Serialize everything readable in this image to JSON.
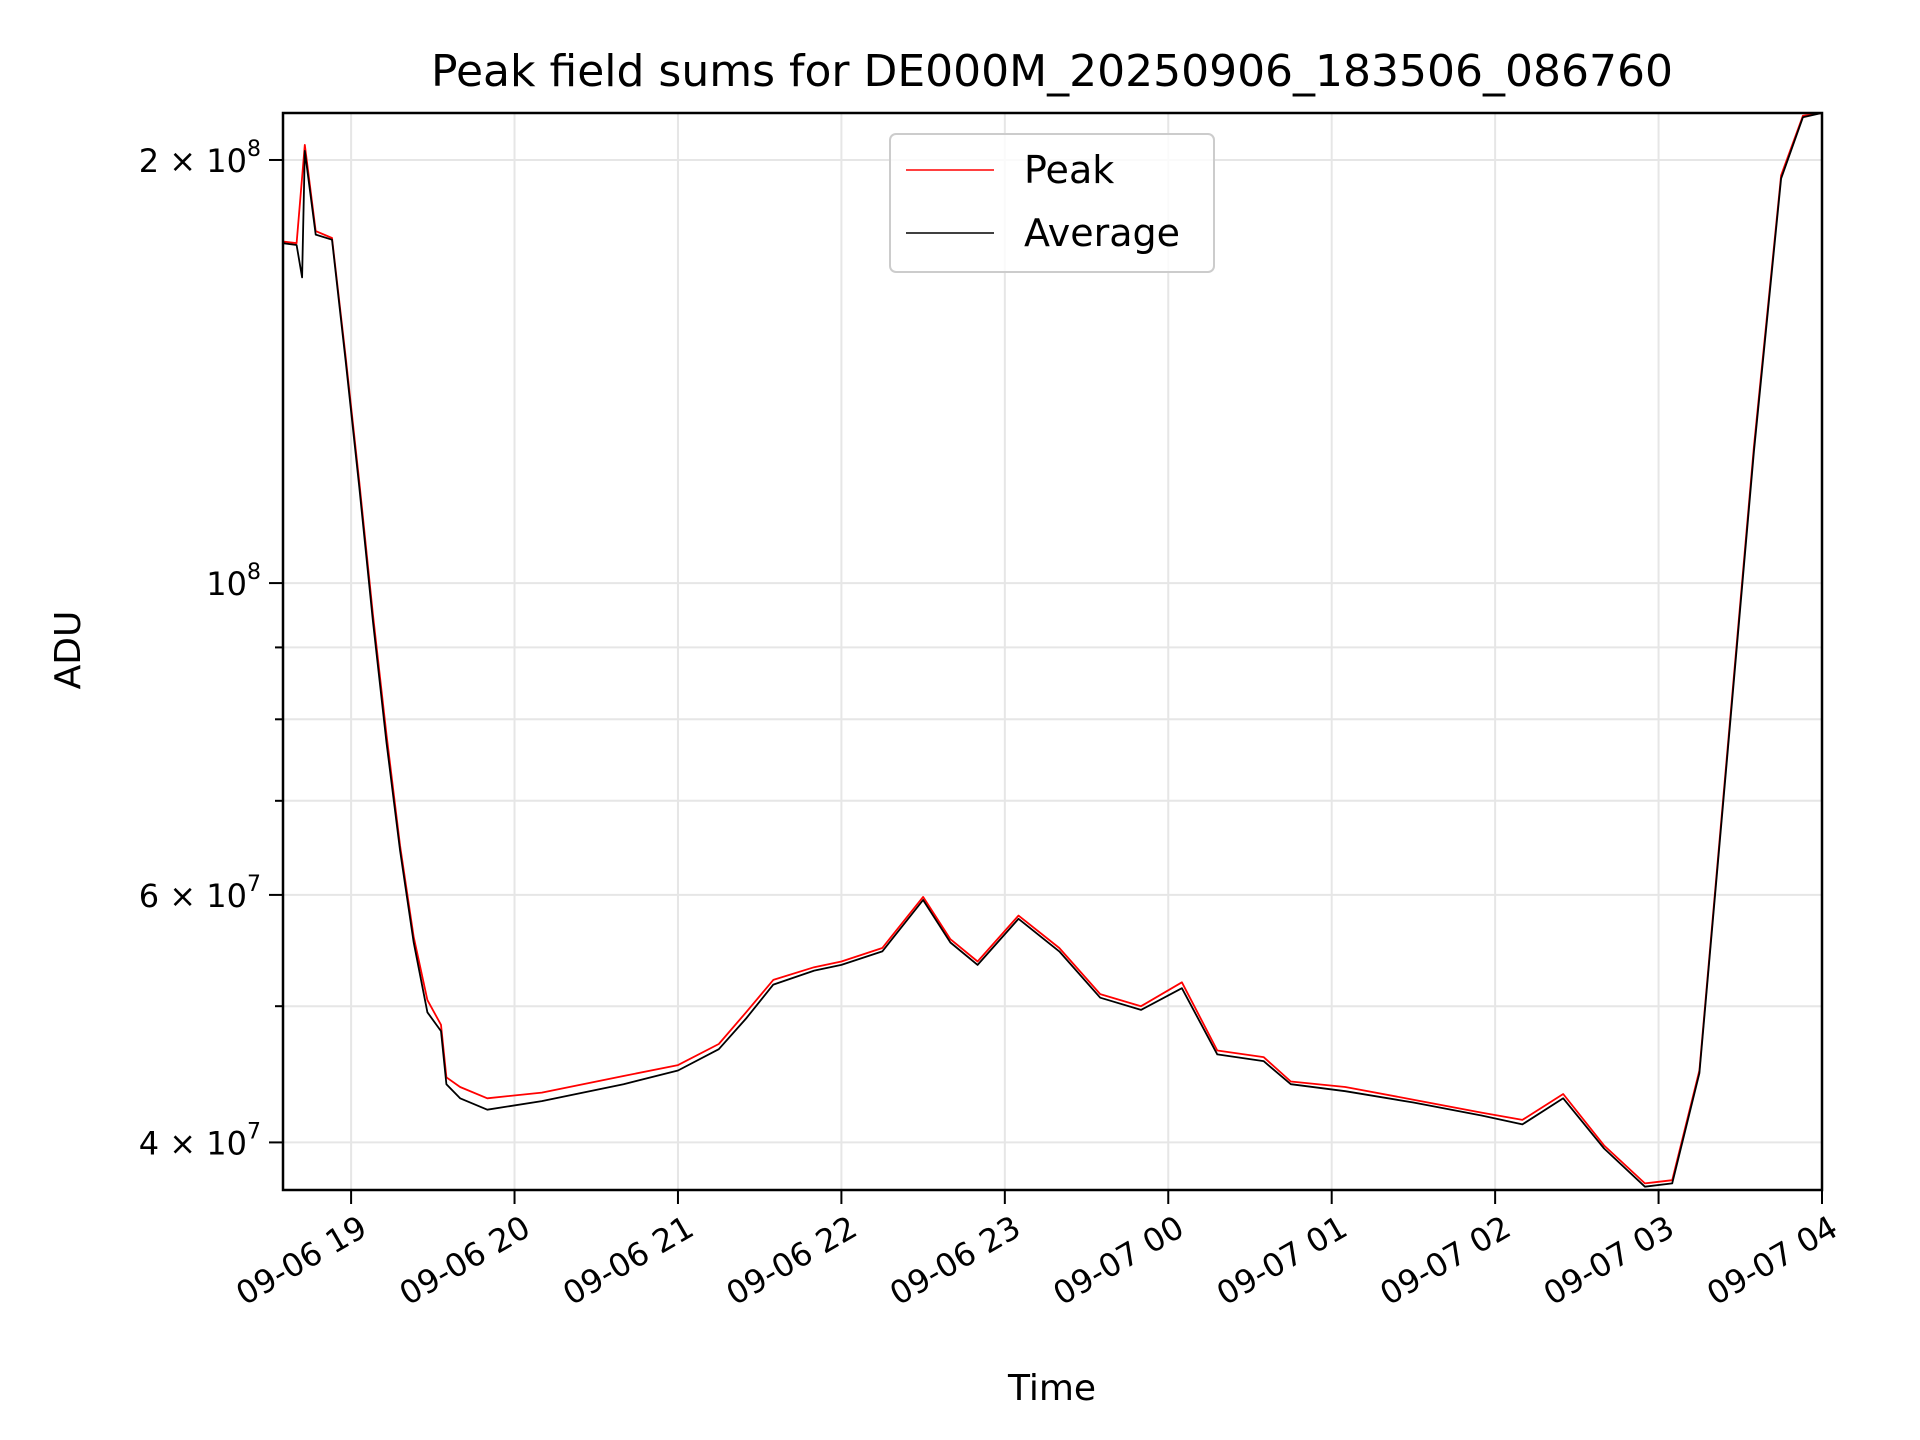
{
  "chart_data": {
    "type": "line",
    "title": "Peak field sums for DE000M_20250906_183506_086760",
    "xlabel": "Time",
    "ylabel": "ADU",
    "yscale": "log",
    "grid": true,
    "legend_position": "top-center",
    "xlim": [
      "2025-09-06T18:35",
      "2025-09-07T04:00"
    ],
    "ylim": [
      37000000,
      216000000
    ],
    "x_ticks": [
      {
        "value": "2025-09-06T19:00",
        "label": "09-06 19"
      },
      {
        "value": "2025-09-06T20:00",
        "label": "09-06 20"
      },
      {
        "value": "2025-09-06T21:00",
        "label": "09-06 21"
      },
      {
        "value": "2025-09-06T22:00",
        "label": "09-06 22"
      },
      {
        "value": "2025-09-06T23:00",
        "label": "09-06 23"
      },
      {
        "value": "2025-09-07T00:00",
        "label": "09-07 00"
      },
      {
        "value": "2025-09-07T01:00",
        "label": "09-07 01"
      },
      {
        "value": "2025-09-07T02:00",
        "label": "09-07 02"
      },
      {
        "value": "2025-09-07T03:00",
        "label": "09-07 03"
      },
      {
        "value": "2025-09-07T04:00",
        "label": "09-07 04"
      }
    ],
    "y_ticks": [
      {
        "value": 40000000,
        "mantissa": "4",
        "exponent": "7"
      },
      {
        "value": 60000000,
        "mantissa": "6",
        "exponent": "7"
      },
      {
        "value": 100000000,
        "mantissa": "",
        "exponent": "8"
      },
      {
        "value": 200000000,
        "mantissa": "2",
        "exponent": "8"
      }
    ],
    "y_minor_ticks": [
      50000000,
      70000000,
      80000000,
      90000000
    ],
    "series": [
      {
        "name": "Peak",
        "color": "#ff0000",
        "points": [
          [
            "2025-09-06T18:35",
            175000000
          ],
          [
            "2025-09-06T18:40",
            174500000
          ],
          [
            "2025-09-06T18:43",
            205000000
          ],
          [
            "2025-09-06T18:47",
            178000000
          ],
          [
            "2025-09-06T18:53",
            176000000
          ],
          [
            "2025-09-06T18:58",
            145000000
          ],
          [
            "2025-09-06T19:03",
            118000000
          ],
          [
            "2025-09-06T19:08",
            95000000
          ],
          [
            "2025-09-06T19:13",
            78000000
          ],
          [
            "2025-09-06T19:18",
            65000000
          ],
          [
            "2025-09-06T19:23",
            56000000
          ],
          [
            "2025-09-06T19:28",
            50500000
          ],
          [
            "2025-09-06T19:33",
            48500000
          ],
          [
            "2025-09-06T19:35",
            44500000
          ],
          [
            "2025-09-06T19:40",
            43800000
          ],
          [
            "2025-09-06T19:50",
            43000000
          ],
          [
            "2025-09-06T20:10",
            43400000
          ],
          [
            "2025-09-06T20:40",
            44600000
          ],
          [
            "2025-09-06T21:00",
            45400000
          ],
          [
            "2025-09-06T21:15",
            47000000
          ],
          [
            "2025-09-06T21:25",
            49500000
          ],
          [
            "2025-09-06T21:35",
            52200000
          ],
          [
            "2025-09-06T21:50",
            53300000
          ],
          [
            "2025-09-06T22:00",
            53800000
          ],
          [
            "2025-09-06T22:15",
            55000000
          ],
          [
            "2025-09-06T22:30",
            59800000
          ],
          [
            "2025-09-06T22:40",
            55800000
          ],
          [
            "2025-09-06T22:50",
            53800000
          ],
          [
            "2025-09-06T23:05",
            58000000
          ],
          [
            "2025-09-06T23:20",
            55000000
          ],
          [
            "2025-09-06T23:35",
            51000000
          ],
          [
            "2025-09-06T23:50",
            50000000
          ],
          [
            "2025-09-07T00:05",
            52000000
          ],
          [
            "2025-09-07T00:18",
            46500000
          ],
          [
            "2025-09-07T00:35",
            46000000
          ],
          [
            "2025-09-07T00:45",
            44200000
          ],
          [
            "2025-09-07T01:05",
            43800000
          ],
          [
            "2025-09-07T01:30",
            42900000
          ],
          [
            "2025-09-07T01:55",
            42000000
          ],
          [
            "2025-09-07T02:10",
            41500000
          ],
          [
            "2025-09-07T02:25",
            43300000
          ],
          [
            "2025-09-07T02:40",
            39800000
          ],
          [
            "2025-09-07T02:55",
            37400000
          ],
          [
            "2025-09-07T03:05",
            37600000
          ],
          [
            "2025-09-07T03:15",
            45000000
          ],
          [
            "2025-09-07T03:25",
            75000000
          ],
          [
            "2025-09-07T03:35",
            125000000
          ],
          [
            "2025-09-07T03:45",
            195000000
          ],
          [
            "2025-09-07T03:53",
            215000000
          ],
          [
            "2025-09-07T04:00",
            216000000
          ]
        ]
      },
      {
        "name": "Average",
        "color": "#000000",
        "points": [
          [
            "2025-09-06T18:35",
            174500000
          ],
          [
            "2025-09-06T18:40",
            174000000
          ],
          [
            "2025-09-06T18:42",
            165000000
          ],
          [
            "2025-09-06T18:43",
            203000000
          ],
          [
            "2025-09-06T18:47",
            177000000
          ],
          [
            "2025-09-06T18:53",
            175500000
          ],
          [
            "2025-09-06T18:58",
            144000000
          ],
          [
            "2025-09-06T19:03",
            117000000
          ],
          [
            "2025-09-06T19:08",
            94000000
          ],
          [
            "2025-09-06T19:13",
            77000000
          ],
          [
            "2025-09-06T19:18",
            64500000
          ],
          [
            "2025-09-06T19:23",
            55500000
          ],
          [
            "2025-09-06T19:28",
            49500000
          ],
          [
            "2025-09-06T19:33",
            48000000
          ],
          [
            "2025-09-06T19:35",
            44000000
          ],
          [
            "2025-09-06T19:40",
            43000000
          ],
          [
            "2025-09-06T19:50",
            42200000
          ],
          [
            "2025-09-06T20:10",
            42800000
          ],
          [
            "2025-09-06T20:40",
            44000000
          ],
          [
            "2025-09-06T21:00",
            45000000
          ],
          [
            "2025-09-06T21:15",
            46600000
          ],
          [
            "2025-09-06T21:25",
            49000000
          ],
          [
            "2025-09-06T21:35",
            51800000
          ],
          [
            "2025-09-06T21:50",
            53000000
          ],
          [
            "2025-09-06T22:00",
            53500000
          ],
          [
            "2025-09-06T22:15",
            54700000
          ],
          [
            "2025-09-06T22:30",
            59500000
          ],
          [
            "2025-09-06T22:40",
            55500000
          ],
          [
            "2025-09-06T22:50",
            53500000
          ],
          [
            "2025-09-06T23:05",
            57700000
          ],
          [
            "2025-09-06T23:20",
            54700000
          ],
          [
            "2025-09-06T23:35",
            50700000
          ],
          [
            "2025-09-06T23:50",
            49700000
          ],
          [
            "2025-09-07T00:05",
            51500000
          ],
          [
            "2025-09-07T00:18",
            46200000
          ],
          [
            "2025-09-07T00:35",
            45700000
          ],
          [
            "2025-09-07T00:45",
            44000000
          ],
          [
            "2025-09-07T01:05",
            43500000
          ],
          [
            "2025-09-07T01:30",
            42700000
          ],
          [
            "2025-09-07T01:55",
            41800000
          ],
          [
            "2025-09-07T02:10",
            41200000
          ],
          [
            "2025-09-07T02:25",
            43000000
          ],
          [
            "2025-09-07T02:40",
            39600000
          ],
          [
            "2025-09-07T02:55",
            37200000
          ],
          [
            "2025-09-07T03:05",
            37400000
          ],
          [
            "2025-09-07T03:15",
            44800000
          ],
          [
            "2025-09-07T03:25",
            74500000
          ],
          [
            "2025-09-07T03:35",
            124000000
          ],
          [
            "2025-09-07T03:45",
            194000000
          ],
          [
            "2025-09-07T03:53",
            214500000
          ],
          [
            "2025-09-07T04:00",
            216000000
          ]
        ]
      }
    ]
  }
}
